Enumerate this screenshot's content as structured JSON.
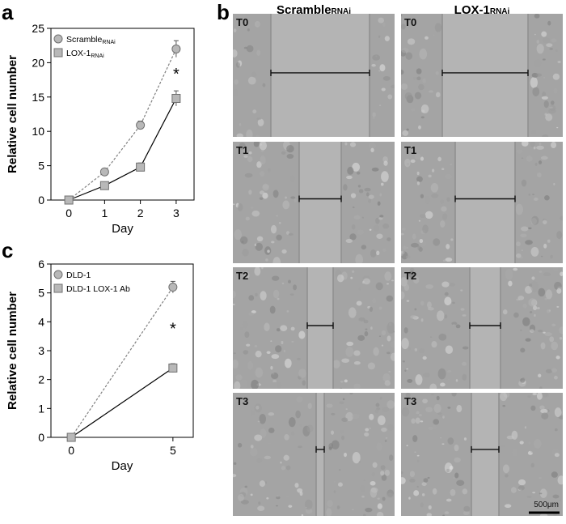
{
  "panel_letters": {
    "a": "a",
    "b": "b",
    "c": "c"
  },
  "chart_data": [
    {
      "panel": "a",
      "type": "line",
      "ylabel": "Relative cell number",
      "xlabel": "Day",
      "x": [
        0,
        1,
        2,
        3
      ],
      "xlim": [
        -0.5,
        3.5
      ],
      "ylim": [
        0,
        25
      ],
      "yticks": [
        0,
        5,
        10,
        15,
        20,
        25
      ],
      "xticks": [
        0,
        1,
        2,
        3
      ],
      "legend_position": "top-left",
      "series": [
        {
          "name": "Scramble",
          "name_sub": "RNAi",
          "marker": "circle",
          "line": "dashed",
          "values": [
            0,
            4.1,
            10.9,
            22.0
          ],
          "errors": [
            0,
            0.5,
            0.6,
            1.2
          ]
        },
        {
          "name": "LOX-1",
          "name_sub": "RNAi",
          "marker": "square",
          "line": "solid",
          "values": [
            0,
            2.1,
            4.8,
            14.8
          ],
          "errors": [
            0,
            0.3,
            0.6,
            1.1
          ]
        }
      ],
      "annotations": [
        {
          "text": "*",
          "x": 3,
          "y": 18.5
        }
      ]
    },
    {
      "panel": "c",
      "type": "line",
      "ylabel": "Relative cell number",
      "xlabel": "Day",
      "x": [
        0,
        5
      ],
      "xlim": [
        -1,
        6
      ],
      "ylim": [
        0,
        6
      ],
      "yticks": [
        0,
        1,
        2,
        3,
        4,
        5,
        6
      ],
      "xticks": [
        0,
        5
      ],
      "legend_position": "top-left",
      "series": [
        {
          "name": "DLD-1",
          "name_sub": "",
          "marker": "circle",
          "line": "dashed",
          "values": [
            0,
            5.2
          ],
          "errors": [
            0,
            0.2
          ]
        },
        {
          "name": "DLD-1 LOX-1 Ab",
          "name_sub": "",
          "marker": "square",
          "line": "solid",
          "values": [
            0,
            2.4
          ],
          "errors": [
            0,
            0.15
          ]
        }
      ],
      "annotations": [
        {
          "text": "*",
          "x": 5,
          "y": 3.8
        }
      ]
    }
  ],
  "micrographs": {
    "columns": [
      {
        "label": "Scramble",
        "sub": "RNAi"
      },
      {
        "label": "LOX-1",
        "sub": "RNAi"
      }
    ],
    "rows": [
      "T0",
      "T1",
      "T2",
      "T3"
    ],
    "gap_widths": [
      [
        0.61,
        0.53
      ],
      [
        0.26,
        0.37
      ],
      [
        0.16,
        0.19
      ],
      [
        0.05,
        0.17
      ]
    ],
    "scale_bar": "500μm"
  },
  "colors": {
    "marker_fill": "#b8b8b8",
    "marker_stroke": "#707070",
    "dashed_line": "#808080",
    "solid_line": "#000000",
    "micrograph_bg": "#a4a4a4",
    "wound_gap": "#b4b4b4"
  }
}
